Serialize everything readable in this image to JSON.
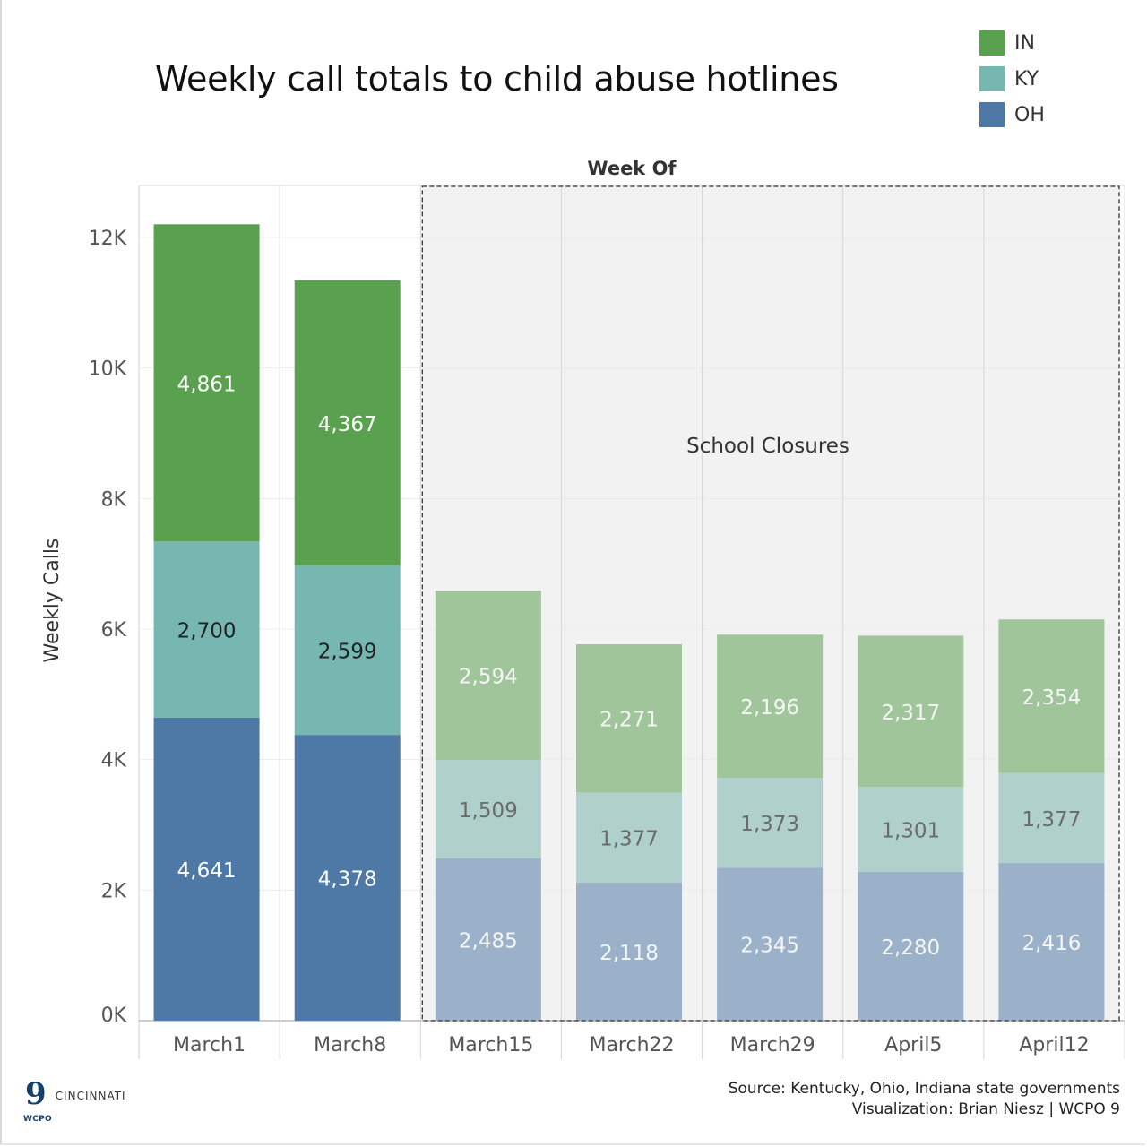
{
  "page": {
    "title": "Weekly call totals to child abuse hotlines",
    "source_line1": "Source: Kentucky, Ohio, Indiana state governments",
    "source_line2": "Visualization: Brian Niesz | WCPO 9",
    "logo_mark": "9",
    "logo_sub": "WCPO",
    "logo_city": "CINCINNATI"
  },
  "chart_data": {
    "type": "bar",
    "stacked": true,
    "title": "Weekly call totals to child abuse hotlines",
    "xlabel": "Week Of",
    "ylabel": "Weekly Calls",
    "ylim": [
      0,
      12800
    ],
    "yticks": [
      0,
      2000,
      4000,
      6000,
      8000,
      10000,
      12000
    ],
    "ytick_labels": [
      "0K",
      "2K",
      "4K",
      "6K",
      "8K",
      "10K",
      "12K"
    ],
    "categories": [
      "March1",
      "March8",
      "March15",
      "March22",
      "March29",
      "April5",
      "April12"
    ],
    "series": [
      {
        "name": "OH",
        "color": "#4e79a7",
        "faded_color": "#9bb0c9",
        "values": [
          4641,
          4378,
          2485,
          2118,
          2345,
          2280,
          2416
        ]
      },
      {
        "name": "KY",
        "color": "#76b7b2",
        "faded_color": "#b0d0cc",
        "values": [
          2700,
          2599,
          1509,
          1377,
          1373,
          1301,
          1377
        ]
      },
      {
        "name": "IN",
        "color": "#59a14f",
        "faded_color": "#a0c59a",
        "values": [
          4861,
          4367,
          2594,
          2271,
          2196,
          2317,
          2354
        ]
      }
    ],
    "legend_order": [
      "IN",
      "KY",
      "OH"
    ],
    "legend_position": "top-right",
    "annotation": {
      "text": "School Closures",
      "start_category": "March15",
      "end_category": "April12"
    }
  }
}
